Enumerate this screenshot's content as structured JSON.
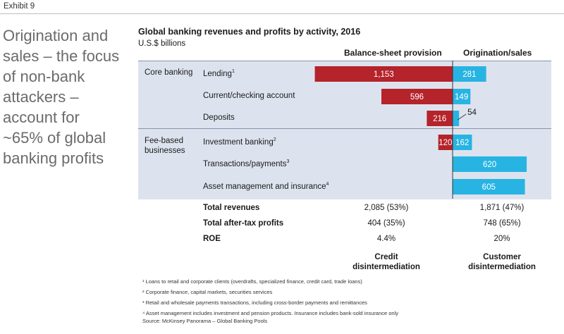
{
  "exhibit": "Exhibit 9",
  "headline_lines": [
    "Origination and",
    "sales – the focus",
    "of non-bank",
    "attackers –",
    "account for",
    "~65% of global",
    "banking profits"
  ],
  "colors": {
    "balance_sheet": "#b5232b",
    "origination": "#27b4e3",
    "band": "#dde3ee"
  },
  "chart_data": {
    "type": "bar",
    "title": "Global banking revenues and profits by activity, 2016",
    "subtitle": "U.S.$ billions",
    "orientation": "horizontal-diverging",
    "series": [
      {
        "name": "Balance-sheet provision",
        "values": [
          1153,
          596,
          216,
          120,
          0,
          0
        ]
      },
      {
        "name": "Origination/sales",
        "values": [
          281,
          149,
          54,
          162,
          620,
          605
        ]
      }
    ],
    "categories": [
      "Lending¹",
      "Current/checking account",
      "Deposits",
      "Investment banking²",
      "Transactions/payments³",
      "Asset management and insurance⁴"
    ],
    "groups": [
      {
        "label": "Core banking",
        "rows": [
          0,
          1,
          2
        ]
      },
      {
        "label": "Fee-based businesses",
        "rows": [
          3,
          4,
          5
        ]
      }
    ],
    "xlim": [
      -1200,
      620
    ]
  },
  "labels": {
    "rows": [
      {
        "text": "Lending",
        "sup": "1"
      },
      {
        "text": "Current/checking account",
        "sup": ""
      },
      {
        "text": "Deposits",
        "sup": ""
      },
      {
        "text": "Investment banking",
        "sup": "2"
      },
      {
        "text": "Transactions/payments",
        "sup": "3"
      },
      {
        "text": "Asset management and insurance",
        "sup": "4"
      }
    ],
    "groups": [
      "Core banking",
      "Fee-based businesses"
    ]
  },
  "summary": {
    "rows": [
      {
        "label": "Total revenues",
        "balance": "2,085 (53%)",
        "origination": "1,871 (47%)"
      },
      {
        "label": "Total after-tax profits",
        "balance": "404 (35%)",
        "origination": "748 (65%)"
      },
      {
        "label": "ROE",
        "balance": "4.4%",
        "origination": "20%"
      }
    ]
  },
  "bottom_heads": {
    "left": [
      "Credit",
      "disintermediation"
    ],
    "right": [
      "Customer",
      "disintermediation"
    ]
  },
  "footnotes": [
    "¹ Loans to retail and corporate clients (overdrafts, specialized finance, credit card, trade loans)",
    "² Corporate finance, capital markets, securities services",
    "³ Retail and wholesale payments transactions, including cross-border payments and remittances",
    "⁴ Asset management includes investment and pension products. Insurance includes bank-sold insurance only"
  ],
  "source": "Source: McKinsey Panorama – Global Banking Pools"
}
